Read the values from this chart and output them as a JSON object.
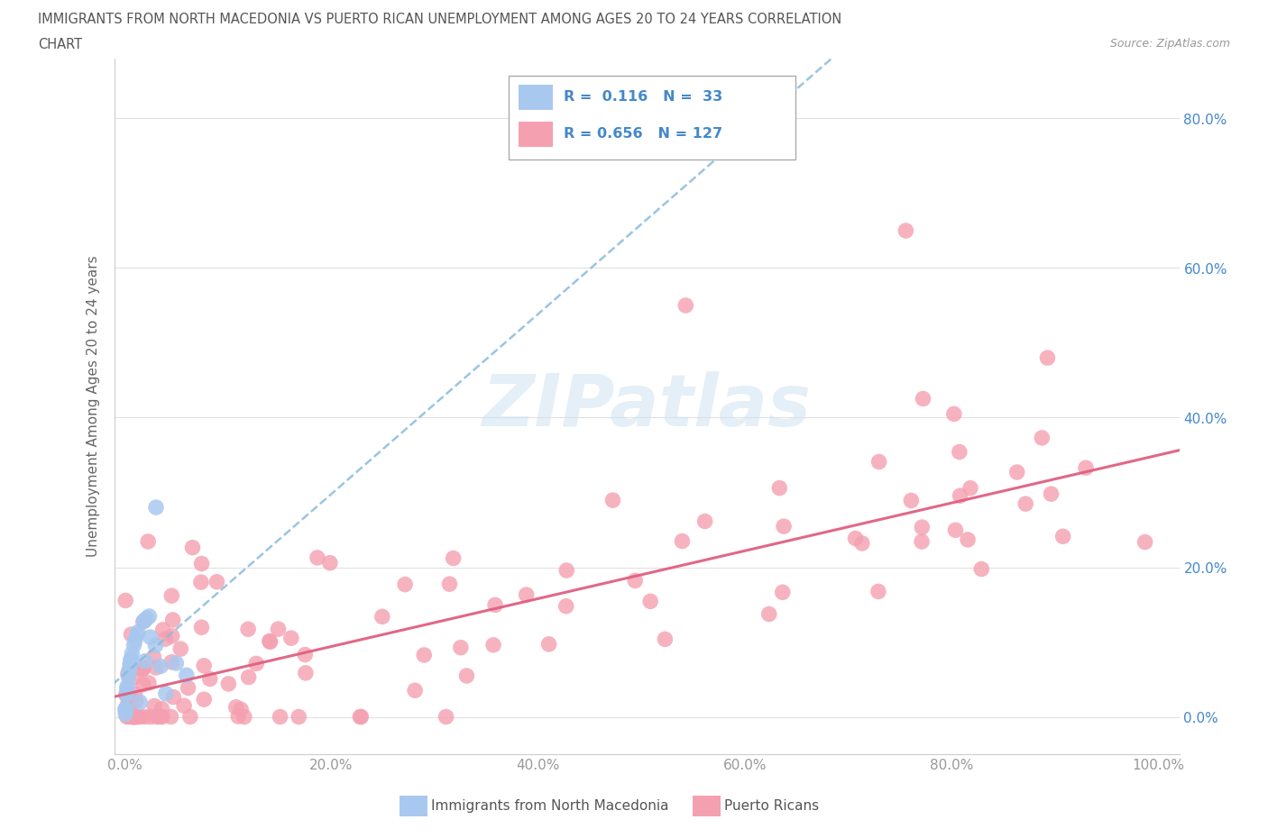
{
  "title_line1": "IMMIGRANTS FROM NORTH MACEDONIA VS PUERTO RICAN UNEMPLOYMENT AMONG AGES 20 TO 24 YEARS CORRELATION",
  "title_line2": "CHART",
  "source": "Source: ZipAtlas.com",
  "ylabel": "Unemployment Among Ages 20 to 24 years",
  "xlim": [
    -0.01,
    1.02
  ],
  "ylim": [
    -0.05,
    0.88
  ],
  "xticks": [
    0.0,
    0.2,
    0.4,
    0.6,
    0.8,
    1.0
  ],
  "yticks": [
    0.0,
    0.2,
    0.4,
    0.6,
    0.8
  ],
  "right_ytick_labels": [
    "0.0%",
    "20.0%",
    "40.0%",
    "60.0%",
    "80.0%"
  ],
  "xtick_labels": [
    "0.0%",
    "20.0%",
    "40.0%",
    "60.0%",
    "80.0%",
    "100.0%"
  ],
  "color_blue": "#a8c8f0",
  "color_pink": "#f4a0b0",
  "color_blue_line": "#88bbdd",
  "color_pink_line": "#e06080",
  "color_text_blue": "#4488cc",
  "watermark": "ZIPatlas"
}
